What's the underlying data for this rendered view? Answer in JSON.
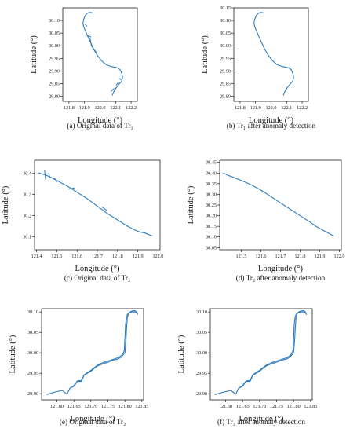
{
  "chart_data": [
    {
      "type": "line",
      "caption": "(a) Original data of Tr₁",
      "xlabel": "Longitude (°)",
      "ylabel": "Latitude (°)",
      "xlim": [
        121.76,
        122.24
      ],
      "ylim": [
        29.78,
        30.15
      ],
      "xticks": [
        "121.8",
        "121.9",
        "122.0",
        "122.1",
        "122.2"
      ],
      "yticks": [
        "29.80",
        "29.85",
        "29.90",
        "29.95",
        "30.00",
        "30.05",
        "30.10"
      ],
      "series": [
        {
          "x": [
            121.95,
            121.94,
            121.92,
            121.905,
            121.895,
            121.89,
            121.895,
            121.905,
            121.915,
            121.93,
            121.945,
            121.96,
            121.985,
            122.01,
            122.04,
            122.07,
            122.095,
            122.115,
            122.13,
            122.14,
            122.145,
            122.14,
            122.125,
            122.105,
            122.09,
            122.08
          ],
          "y": [
            30.13,
            30.132,
            30.13,
            30.12,
            30.105,
            30.09,
            30.075,
            30.06,
            30.045,
            30.025,
            30.005,
            29.985,
            29.96,
            29.94,
            29.925,
            29.918,
            29.915,
            29.912,
            29.905,
            29.89,
            29.875,
            29.86,
            29.85,
            29.835,
            29.82,
            29.805
          ]
        }
      ],
      "anomalies": [
        [
          [
            121.905,
            30.085
          ],
          [
            121.915,
            30.077
          ]
        ],
        [
          [
            121.92,
            30.04
          ],
          [
            121.94,
            30.035
          ]
        ],
        [
          [
            121.935,
            30.03
          ],
          [
            121.945,
            30.0
          ]
        ],
        [
          [
            121.945,
            30.0
          ],
          [
            121.955,
            29.99
          ]
        ],
        [
          [
            121.96,
            29.985
          ],
          [
            121.975,
            29.975
          ]
        ],
        [
          [
            122.12,
            29.855
          ],
          [
            122.105,
            29.845
          ]
        ],
        [
          [
            122.125,
            29.87
          ],
          [
            122.14,
            29.865
          ]
        ],
        [
          [
            122.09,
            29.83
          ],
          [
            122.07,
            29.82
          ]
        ]
      ]
    },
    {
      "type": "line",
      "caption": "(b)  Tr₁ after anomaly detection",
      "xlabel": "Longitude (°)",
      "ylabel": "Latitude (°)",
      "xlim": [
        121.76,
        122.24
      ],
      "ylim": [
        29.78,
        30.15
      ],
      "xticks": [
        "121.8",
        "121.9",
        "122.0",
        "122.1",
        "122.2"
      ],
      "yticks": [
        "29.80",
        "29.85",
        "29.90",
        "29.95",
        "30.00",
        "30.05",
        "30.10",
        "30.15"
      ],
      "series": [
        {
          "x": [
            121.95,
            121.94,
            121.92,
            121.905,
            121.895,
            121.89,
            121.895,
            121.905,
            121.915,
            121.93,
            121.945,
            121.96,
            121.985,
            122.01,
            122.04,
            122.07,
            122.095,
            122.115,
            122.13,
            122.14,
            122.145,
            122.14,
            122.125,
            122.105,
            122.09,
            122.08
          ],
          "y": [
            30.13,
            30.132,
            30.13,
            30.12,
            30.105,
            30.09,
            30.075,
            30.06,
            30.045,
            30.025,
            30.005,
            29.985,
            29.96,
            29.94,
            29.925,
            29.918,
            29.915,
            29.912,
            29.905,
            29.89,
            29.875,
            29.86,
            29.85,
            29.835,
            29.82,
            29.805
          ]
        }
      ],
      "anomalies": []
    },
    {
      "type": "line",
      "caption": "(c) Original data of Tr₂",
      "xlabel": "Longitude (°)",
      "ylabel": "Latitude (°)",
      "xlim": [
        121.39,
        122.01
      ],
      "ylim": [
        30.04,
        30.46
      ],
      "xticks": [
        "121.4",
        "121.5",
        "121.6",
        "121.7",
        "121.8",
        "121.9",
        "122.0"
      ],
      "yticks": [
        "30.1",
        "30.2",
        "30.3",
        "30.4"
      ],
      "series": [
        {
          "x": [
            121.41,
            121.43,
            121.46,
            121.5,
            121.55,
            121.6,
            121.65,
            121.7,
            121.75,
            121.8,
            121.85,
            121.88,
            121.91,
            121.93,
            121.95,
            121.97
          ],
          "y": [
            30.4,
            30.395,
            30.385,
            30.365,
            30.34,
            30.31,
            30.28,
            30.245,
            30.21,
            30.18,
            30.15,
            30.135,
            30.123,
            30.12,
            30.113,
            30.105
          ]
        }
      ],
      "anomalies": [
        [
          [
            121.44,
            30.41
          ],
          [
            121.445,
            30.37
          ]
        ],
        [
          [
            121.46,
            30.4
          ],
          [
            121.465,
            30.38
          ]
        ],
        [
          [
            121.49,
            30.375
          ],
          [
            121.5,
            30.36
          ]
        ],
        [
          [
            121.56,
            30.325
          ],
          [
            121.585,
            30.33
          ]
        ],
        [
          [
            121.725,
            30.24
          ],
          [
            121.745,
            30.225
          ]
        ]
      ]
    },
    {
      "type": "line",
      "caption": "(d)  Tr₂ after anomaly detection",
      "xlabel": "Longitude (°)",
      "ylabel": "Latitude (°)",
      "xlim": [
        121.39,
        122.01
      ],
      "ylim": [
        30.04,
        30.46
      ],
      "xticks": [
        "121.5",
        "121.6",
        "121.7",
        "121.8",
        "121.9",
        "122.0"
      ],
      "yticks": [
        "30.05",
        "30.10",
        "30.15",
        "30.20",
        "30.25",
        "30.30",
        "30.35",
        "30.40",
        "30.45"
      ],
      "series": [
        {
          "x": [
            121.41,
            121.43,
            121.46,
            121.5,
            121.55,
            121.6,
            121.65,
            121.7,
            121.75,
            121.8,
            121.85,
            121.88,
            121.91,
            121.93,
            121.95,
            121.97
          ],
          "y": [
            30.4,
            30.39,
            30.38,
            30.365,
            30.345,
            30.32,
            30.29,
            30.26,
            30.23,
            30.2,
            30.17,
            30.15,
            30.135,
            30.125,
            30.115,
            30.105
          ]
        }
      ],
      "anomalies": []
    },
    {
      "type": "line",
      "caption": "(e) Original data of Tr₃",
      "xlabel": "Longitude (°)",
      "ylabel": "Latitude (°)",
      "xlim": [
        121.555,
        121.855
      ],
      "ylim": [
        29.885,
        30.108
      ],
      "xticks": [
        "121.60",
        "121.65",
        "121.70",
        "121.75",
        "121.80",
        "121.85"
      ],
      "yticks": [
        "29.90",
        "29.95",
        "30.00",
        "30.05",
        "30.10"
      ],
      "series": [
        {
          "x": [
            121.57,
            121.59,
            121.615,
            121.63,
            121.638,
            121.65,
            121.66,
            121.672,
            121.68,
            121.69,
            121.7,
            121.71,
            121.72,
            121.735,
            121.75,
            121.765,
            121.78,
            121.79,
            121.8,
            121.803,
            121.805,
            121.807,
            121.81,
            121.815,
            121.82,
            121.83,
            121.835,
            121.838
          ],
          "y": [
            29.898,
            29.903,
            29.908,
            29.899,
            29.913,
            29.918,
            29.93,
            29.93,
            29.945,
            29.95,
            29.955,
            29.962,
            29.968,
            29.973,
            29.977,
            29.982,
            29.985,
            29.99,
            30.0,
            30.03,
            30.06,
            30.085,
            30.095,
            30.1,
            30.102,
            30.103,
            30.1,
            30.094
          ]
        },
        {
          "x": [
            121.638,
            121.65,
            121.66,
            121.672,
            121.68,
            121.69,
            121.7,
            121.71,
            121.72,
            121.735,
            121.75,
            121.765,
            121.78,
            121.792,
            121.798,
            121.8,
            121.802,
            121.805,
            121.81,
            121.82,
            121.83,
            121.835
          ],
          "y": [
            29.913,
            29.92,
            29.931,
            29.933,
            29.946,
            29.952,
            29.957,
            29.964,
            29.97,
            29.976,
            29.98,
            29.984,
            29.988,
            29.995,
            30.005,
            30.035,
            30.07,
            30.09,
            30.097,
            30.1,
            30.1,
            30.097
          ]
        }
      ],
      "anomalies": []
    },
    {
      "type": "line",
      "caption": "(f)  Tr₃ after anomaly detection",
      "xlabel": "Longitude (°)",
      "ylabel": "Latitude (°)",
      "xlim": [
        121.555,
        121.855
      ],
      "ylim": [
        29.885,
        30.108
      ],
      "xticks": [
        "121.60",
        "121.65",
        "121.70",
        "121.75",
        "121.80",
        "121.85"
      ],
      "yticks": [
        "29.90",
        "29.95",
        "30.00",
        "30.05",
        "30.10"
      ],
      "series": [
        {
          "x": [
            121.57,
            121.59,
            121.615,
            121.63,
            121.638,
            121.65,
            121.66,
            121.672,
            121.68,
            121.69,
            121.7,
            121.71,
            121.72,
            121.735,
            121.75,
            121.765,
            121.78,
            121.79,
            121.8,
            121.803,
            121.805,
            121.807,
            121.81,
            121.815,
            121.82,
            121.83,
            121.835,
            121.838
          ],
          "y": [
            29.898,
            29.903,
            29.908,
            29.899,
            29.913,
            29.918,
            29.93,
            29.93,
            29.945,
            29.95,
            29.955,
            29.962,
            29.968,
            29.973,
            29.977,
            29.982,
            29.985,
            29.99,
            30.0,
            30.03,
            30.06,
            30.085,
            30.095,
            30.1,
            30.102,
            30.103,
            30.1,
            30.094
          ]
        },
        {
          "x": [
            121.638,
            121.65,
            121.66,
            121.672,
            121.68,
            121.69,
            121.7,
            121.71,
            121.72,
            121.735,
            121.75,
            121.765,
            121.78,
            121.792,
            121.798,
            121.8,
            121.802,
            121.805,
            121.81,
            121.82,
            121.83,
            121.835
          ],
          "y": [
            29.913,
            29.92,
            29.931,
            29.933,
            29.946,
            29.952,
            29.957,
            29.964,
            29.97,
            29.976,
            29.98,
            29.984,
            29.988,
            29.995,
            30.005,
            30.035,
            30.07,
            30.09,
            30.097,
            30.1,
            30.1,
            30.097
          ]
        }
      ],
      "anomalies": []
    }
  ]
}
